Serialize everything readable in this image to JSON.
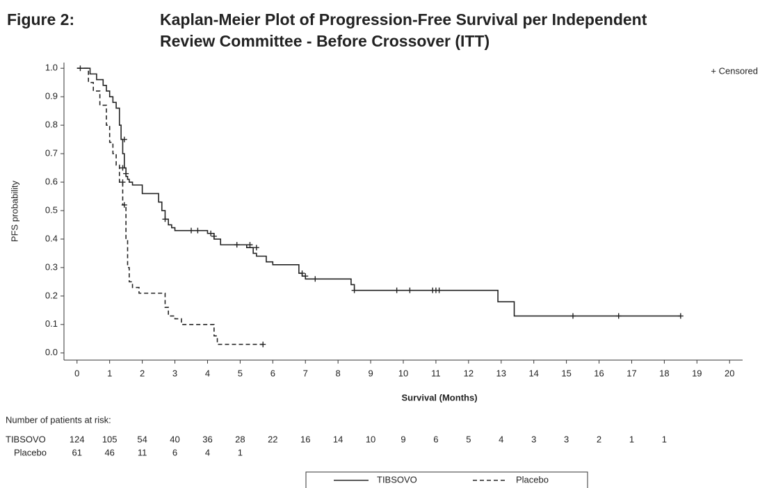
{
  "chart_data": {
    "type": "km",
    "figure_label": "Figure 2:",
    "title": [
      "Kaplan-Meier Plot of Progression-Free Survival per Independent",
      "Review Committee - Before Crossover (ITT)"
    ],
    "x_label": "Survival (Months)",
    "y_label": "PFS probability",
    "censor_label": "+ Censored",
    "xlim": [
      -0.4,
      20.4
    ],
    "ylim": [
      -0.025,
      1.02
    ],
    "xticks": [
      0,
      1,
      2,
      3,
      4,
      5,
      6,
      7,
      8,
      9,
      10,
      11,
      12,
      13,
      14,
      15,
      16,
      17,
      18,
      19,
      20
    ],
    "yticks": [
      {
        "value": 0,
        "label": "0.0"
      },
      0.1,
      0.2,
      0.3,
      0.4,
      0.5,
      0.6,
      0.7,
      0.8,
      0.9,
      {
        "value": 1,
        "label": "1.0"
      }
    ],
    "series": [
      {
        "name": "TIBSOVO",
        "color": "#222222",
        "dash": "none",
        "x": [
          0,
          0.4,
          0.6,
          0.8,
          0.9,
          1.0,
          1.1,
          1.2,
          1.3,
          1.35,
          1.4,
          1.45,
          1.5,
          1.55,
          1.6,
          1.7,
          2.0,
          2.5,
          2.6,
          2.7,
          2.8,
          2.9,
          3.0,
          4.0,
          4.2,
          4.4,
          5.2,
          5.4,
          5.5,
          5.8,
          6.0,
          6.8,
          6.9,
          7.0,
          7.2,
          8.4,
          8.5,
          12.9,
          13.4,
          18.5
        ],
        "values": [
          1.0,
          0.98,
          0.96,
          0.94,
          0.92,
          0.9,
          0.88,
          0.86,
          0.8,
          0.75,
          0.7,
          0.65,
          0.62,
          0.61,
          0.6,
          0.59,
          0.56,
          0.53,
          0.5,
          0.47,
          0.45,
          0.44,
          0.43,
          0.42,
          0.4,
          0.38,
          0.37,
          0.35,
          0.34,
          0.32,
          0.31,
          0.28,
          0.27,
          0.26,
          0.26,
          0.24,
          0.22,
          0.18,
          0.13,
          0.13
        ],
        "censored_x": [
          0.1,
          1.4,
          1.45,
          1.5,
          2.7,
          3.5,
          3.7,
          4.1,
          4.2,
          4.9,
          5.3,
          5.5,
          6.9,
          7.0,
          7.3,
          8.5,
          9.8,
          10.2,
          10.9,
          11.0,
          11.1,
          15.2,
          16.6,
          18.5
        ],
        "censored_values": [
          1.0,
          0.65,
          0.75,
          0.63,
          0.47,
          0.43,
          0.43,
          0.42,
          0.41,
          0.38,
          0.38,
          0.37,
          0.28,
          0.27,
          0.26,
          0.22,
          0.22,
          0.22,
          0.22,
          0.22,
          0.22,
          0.13,
          0.13,
          0.13
        ]
      },
      {
        "name": "Placebo",
        "color": "#222222",
        "dash": "6,4",
        "x": [
          0,
          0.35,
          0.5,
          0.7,
          0.9,
          1.0,
          1.1,
          1.2,
          1.3,
          1.4,
          1.5,
          1.55,
          1.6,
          1.7,
          1.9,
          2.2,
          2.7,
          2.8,
          3.0,
          3.2,
          4.2,
          4.3,
          5.7
        ],
        "values": [
          1.0,
          0.95,
          0.92,
          0.87,
          0.8,
          0.74,
          0.7,
          0.66,
          0.6,
          0.52,
          0.4,
          0.3,
          0.25,
          0.23,
          0.21,
          0.21,
          0.16,
          0.13,
          0.12,
          0.1,
          0.06,
          0.03,
          0.03
        ],
        "censored_x": [
          1.4,
          1.45,
          5.7
        ],
        "censored_values": [
          0.6,
          0.52,
          0.03
        ]
      }
    ],
    "risk_table": {
      "title": "Number of patients at risk:",
      "rows": [
        {
          "label": "TIBSOVO",
          "values": [
            124,
            105,
            54,
            40,
            36,
            28,
            22,
            16,
            14,
            10,
            9,
            6,
            5,
            4,
            3,
            3,
            2,
            1,
            1
          ]
        },
        {
          "label": "Placebo",
          "values": [
            61,
            46,
            11,
            6,
            4,
            1
          ]
        }
      ]
    }
  }
}
